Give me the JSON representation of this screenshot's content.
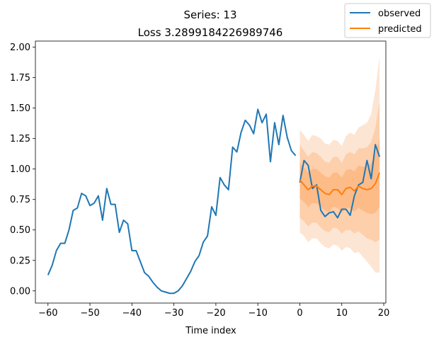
{
  "chart_data": {
    "type": "line",
    "title": "Series: 13",
    "subtitle": "Loss 3.2899184226989746",
    "xlabel": "Time index",
    "ylabel": "",
    "xlim": [
      -63,
      20.5
    ],
    "ylim": [
      -0.1,
      2.05
    ],
    "xticks": [
      -60,
      -50,
      -40,
      -30,
      -20,
      -10,
      0,
      10,
      20
    ],
    "yticks": [
      0.0,
      0.25,
      0.5,
      0.75,
      1.0,
      1.25,
      1.5,
      1.75,
      2.0
    ],
    "xtick_labels": [
      "−60",
      "−50",
      "−40",
      "−30",
      "−20",
      "−10",
      "0",
      "10",
      "20"
    ],
    "ytick_labels": [
      "0.00",
      "0.25",
      "0.50",
      "0.75",
      "1.00",
      "1.25",
      "1.50",
      "1.75",
      "2.00"
    ],
    "grid": false,
    "legend": {
      "placement": "top-right",
      "entries": [
        "observed",
        "predicted"
      ]
    },
    "colors": {
      "observed": "#1f77b4",
      "predicted": "#ff7f0e",
      "band_outer": "#fde5d3",
      "band_mid": "#fdcfab",
      "band_inner": "#fdbb88"
    },
    "series": [
      {
        "name": "observed",
        "x": [
          -60,
          -59,
          -58,
          -57,
          -56,
          -55,
          -54,
          -53,
          -52,
          -51,
          -50,
          -49,
          -48,
          -47,
          -46,
          -45,
          -44,
          -43,
          -42,
          -41,
          -40,
          -39,
          -38,
          -37,
          -36,
          -35,
          -34,
          -33,
          -32,
          -31,
          -30,
          -29,
          -28,
          -27,
          -26,
          -25,
          -24,
          -23,
          -22,
          -21,
          -20,
          -19,
          -18,
          -17,
          -16,
          -15,
          -14,
          -13,
          -12,
          -11,
          -10,
          -9,
          -8,
          -7,
          -6,
          -5,
          -4,
          -3,
          -2,
          -1
        ],
        "values": [
          0.13,
          0.21,
          0.33,
          0.39,
          0.39,
          0.5,
          0.66,
          0.68,
          0.8,
          0.78,
          0.7,
          0.72,
          0.78,
          0.58,
          0.84,
          0.71,
          0.71,
          0.48,
          0.58,
          0.55,
          0.33,
          0.33,
          0.24,
          0.15,
          0.12,
          0.07,
          0.03,
          0.0,
          -0.01,
          -0.02,
          -0.02,
          0.0,
          0.04,
          0.1,
          0.16,
          0.24,
          0.29,
          0.4,
          0.45,
          0.69,
          0.62,
          0.93,
          0.87,
          0.83,
          1.18,
          1.14,
          1.3,
          1.4,
          1.36,
          1.29,
          1.49,
          1.38,
          1.45,
          1.06,
          1.38,
          1.2,
          1.44,
          1.26,
          1.15,
          1.11
        ]
      },
      {
        "name": "observed",
        "x": [
          0,
          1,
          2,
          3,
          4,
          5,
          6,
          7,
          8,
          9,
          10,
          11,
          12,
          13,
          14,
          15,
          16,
          17,
          18,
          19
        ],
        "values": [
          0.89,
          1.07,
          1.03,
          0.84,
          0.87,
          0.66,
          0.61,
          0.64,
          0.65,
          0.6,
          0.67,
          0.67,
          0.62,
          0.78,
          0.87,
          0.89,
          1.07,
          0.92,
          1.2,
          1.1
        ]
      },
      {
        "name": "predicted",
        "x": [
          0,
          1,
          2,
          3,
          4,
          5,
          6,
          7,
          8,
          9,
          10,
          11,
          12,
          13,
          14,
          15,
          16,
          17,
          18,
          19
        ],
        "values": [
          0.91,
          0.87,
          0.83,
          0.86,
          0.86,
          0.83,
          0.8,
          0.79,
          0.83,
          0.83,
          0.79,
          0.84,
          0.85,
          0.82,
          0.86,
          0.84,
          0.83,
          0.84,
          0.88,
          0.97
        ],
        "bands": [
          {
            "level": "outer",
            "upper": [
              1.32,
              1.28,
              1.23,
              1.28,
              1.27,
              1.25,
              1.21,
              1.2,
              1.24,
              1.23,
              1.19,
              1.27,
              1.3,
              1.28,
              1.34,
              1.36,
              1.38,
              1.45,
              1.65,
              1.92
            ],
            "lower": [
              0.48,
              0.45,
              0.4,
              0.43,
              0.43,
              0.39,
              0.36,
              0.35,
              0.38,
              0.37,
              0.33,
              0.36,
              0.35,
              0.31,
              0.32,
              0.28,
              0.24,
              0.2,
              0.15,
              0.15
            ]
          },
          {
            "level": "mid",
            "upper": [
              1.2,
              1.15,
              1.1,
              1.14,
              1.13,
              1.1,
              1.06,
              1.05,
              1.1,
              1.1,
              1.05,
              1.12,
              1.14,
              1.12,
              1.17,
              1.17,
              1.18,
              1.22,
              1.34,
              1.55
            ],
            "lower": [
              0.6,
              0.57,
              0.53,
              0.56,
              0.56,
              0.52,
              0.49,
              0.48,
              0.52,
              0.51,
              0.47,
              0.5,
              0.5,
              0.47,
              0.49,
              0.46,
              0.43,
              0.42,
              0.4,
              0.42
            ]
          },
          {
            "level": "inner",
            "upper": [
              1.05,
              1.01,
              0.97,
              1.0,
              1.0,
              0.97,
              0.94,
              0.93,
              0.97,
              0.97,
              0.93,
              0.99,
              1.0,
              0.98,
              1.03,
              1.02,
              1.02,
              1.05,
              1.12,
              1.25
            ],
            "lower": [
              0.76,
              0.73,
              0.69,
              0.72,
              0.72,
              0.69,
              0.66,
              0.65,
              0.69,
              0.68,
              0.64,
              0.68,
              0.68,
              0.65,
              0.68,
              0.66,
              0.64,
              0.63,
              0.64,
              0.69
            ]
          }
        ]
      }
    ]
  }
}
